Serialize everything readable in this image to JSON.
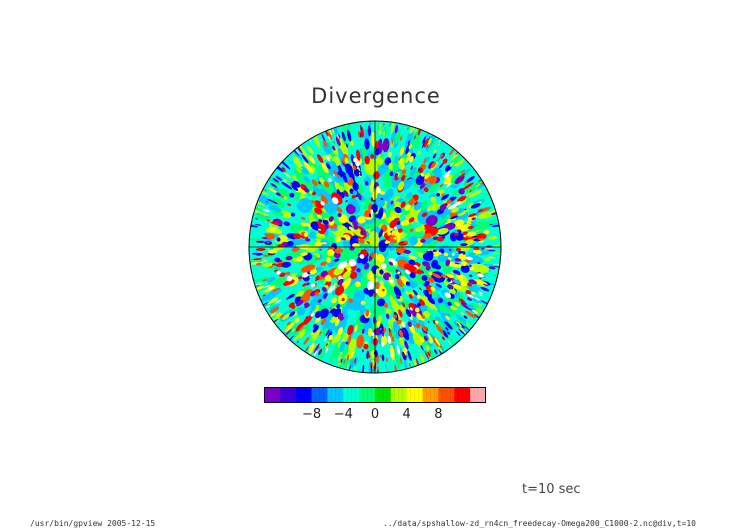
{
  "title": "Divergence",
  "time_label": "t=10 sec",
  "footer": {
    "program": "/usr/bin/gpview  2005-12-15",
    "source": "../data/spshallow-zd_rn4cn_freedecay-Omega200_C1000-2.nc@div,t=10"
  },
  "colorbar": {
    "colors": [
      "#7a00c8",
      "#3c00dc",
      "#0000ff",
      "#0064ff",
      "#00c8ff",
      "#00ffd2",
      "#00ff78",
      "#00e600",
      "#b4ff00",
      "#ffff00",
      "#ffa000",
      "#ff5000",
      "#ff0000",
      "#ffaaaa"
    ],
    "ticks": [
      {
        "value": -8,
        "label": "−8"
      },
      {
        "value": -4,
        "label": "−4"
      },
      {
        "value": 0,
        "label": "0"
      },
      {
        "value": 4,
        "label": "4"
      },
      {
        "value": 8,
        "label": "8"
      }
    ],
    "range": [
      -14,
      14
    ]
  },
  "field": {
    "background_color": "#00ffd2",
    "blob_palette": [
      "#7a00c8",
      "#0000ff",
      "#00c8ff",
      "#00ff78",
      "#b4ff00",
      "#ffff00",
      "#ff5000",
      "#ff0000",
      "#ffffff"
    ]
  }
}
